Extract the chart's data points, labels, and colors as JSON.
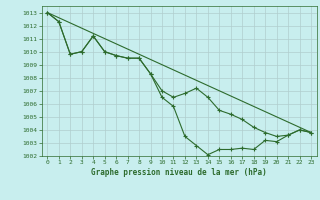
{
  "title": "Graphe pression niveau de la mer (hPa)",
  "background_color": "#c8eeee",
  "grid_color": "#b0cece",
  "line_color": "#2d6b2d",
  "xlim": [
    -0.5,
    23.5
  ],
  "ylim": [
    1002,
    1013.5
  ],
  "yticks": [
    1002,
    1003,
    1004,
    1005,
    1006,
    1007,
    1008,
    1009,
    1010,
    1011,
    1012,
    1013
  ],
  "xticks": [
    0,
    1,
    2,
    3,
    4,
    5,
    6,
    7,
    8,
    9,
    10,
    11,
    12,
    13,
    14,
    15,
    16,
    17,
    18,
    19,
    20,
    21,
    22,
    23
  ],
  "series1_x": [
    0,
    1,
    2,
    3,
    4,
    5,
    6,
    7,
    8,
    9,
    10,
    11,
    12,
    13,
    14,
    15,
    16,
    17,
    18,
    19,
    20,
    21,
    22,
    23
  ],
  "series1_y": [
    1013.0,
    1012.3,
    1009.8,
    1010.0,
    1011.2,
    1010.0,
    1009.7,
    1009.5,
    1009.5,
    1008.3,
    1006.5,
    1005.8,
    1003.5,
    1002.8,
    1002.1,
    1002.5,
    1002.5,
    1002.6,
    1002.5,
    1003.2,
    1003.1,
    1003.6,
    1004.0,
    1003.8
  ],
  "series2_x": [
    0,
    1,
    2,
    3,
    4,
    5,
    6,
    7,
    8,
    9,
    10,
    11,
    12,
    13,
    14,
    15,
    16,
    17,
    18,
    19,
    20,
    21,
    22,
    23
  ],
  "series2_y": [
    1013.0,
    1012.3,
    1009.8,
    1010.0,
    1011.2,
    1010.0,
    1009.7,
    1009.5,
    1009.5,
    1008.3,
    1007.0,
    1006.5,
    1006.8,
    1007.2,
    1006.5,
    1005.5,
    1005.2,
    1004.8,
    1004.2,
    1003.8,
    1003.5,
    1003.6,
    1004.0,
    1003.8
  ],
  "trend_x": [
    0,
    23
  ],
  "trend_y": [
    1013.0,
    1003.8
  ]
}
